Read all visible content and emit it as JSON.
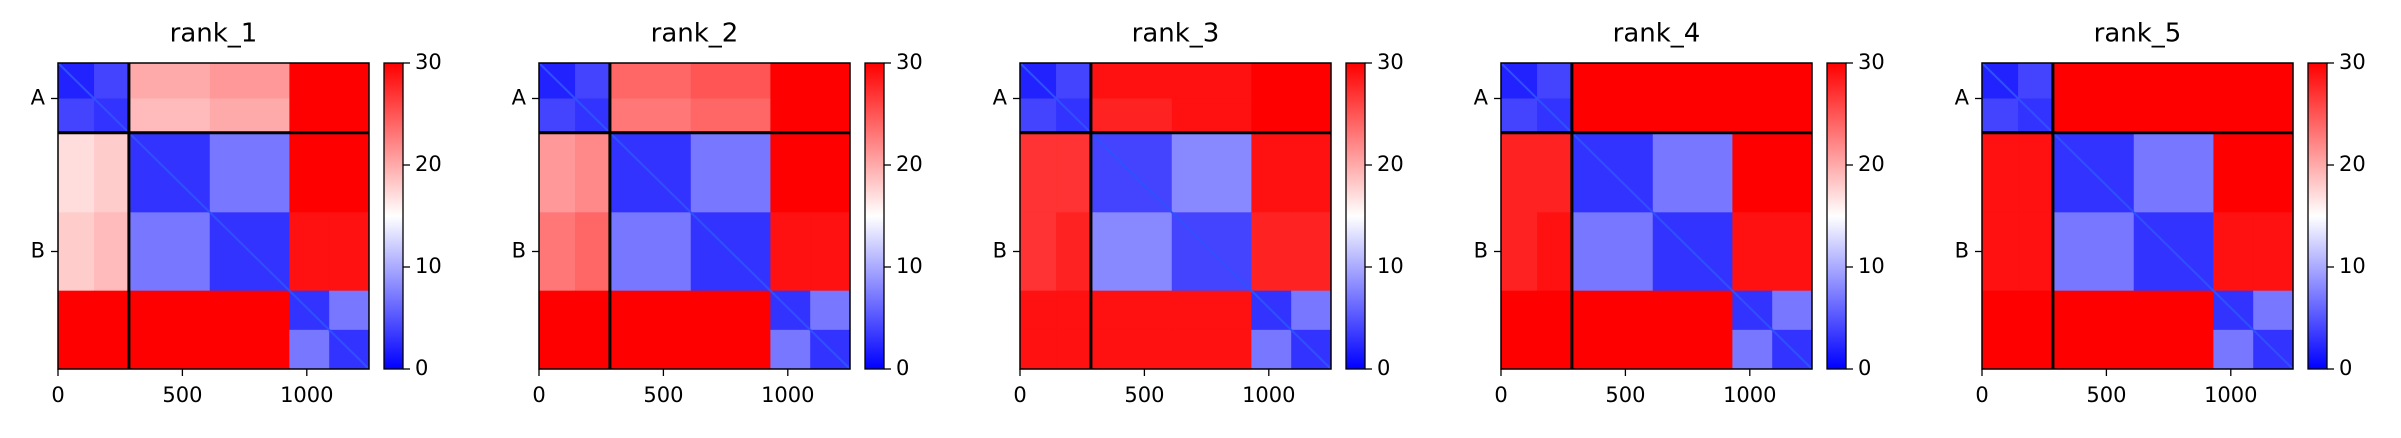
{
  "chart_data": [
    {
      "type": "heatmap",
      "title": "rank_1",
      "x_edges": [
        0,
        145,
        290,
        610,
        930,
        1090,
        1250
      ],
      "xlim": [
        0,
        1250
      ],
      "ylim": [
        1250,
        0
      ],
      "xticks": [
        0,
        500,
        1000
      ],
      "yticks": [
        {
          "value": 145,
          "label": "A"
        },
        {
          "value": 770,
          "label": "B"
        }
      ],
      "chain_breaks": [
        285
      ],
      "colormap": [
        "#0000ff",
        "#ffffff",
        "#ff0000"
      ],
      "clim": [
        0,
        30
      ],
      "cticks": [
        0,
        10,
        20,
        30
      ],
      "values": [
        [
          2,
          4,
          20,
          21,
          30,
          30
        ],
        [
          4,
          3,
          19,
          20,
          30,
          30
        ],
        [
          17,
          18,
          3,
          7,
          30,
          30
        ],
        [
          18,
          19,
          7,
          3,
          29,
          29
        ],
        [
          30,
          30,
          30,
          30,
          3,
          7
        ],
        [
          30,
          30,
          30,
          30,
          7,
          3
        ]
      ]
    },
    {
      "type": "heatmap",
      "title": "rank_2",
      "x_edges": [
        0,
        145,
        290,
        610,
        930,
        1090,
        1250
      ],
      "xlim": [
        0,
        1250
      ],
      "ylim": [
        1250,
        0
      ],
      "xticks": [
        0,
        500,
        1000
      ],
      "yticks": [
        {
          "value": 145,
          "label": "A"
        },
        {
          "value": 770,
          "label": "B"
        }
      ],
      "chain_breaks": [
        285
      ],
      "colormap": [
        "#0000ff",
        "#ffffff",
        "#ff0000"
      ],
      "clim": [
        0,
        30
      ],
      "cticks": [
        0,
        10,
        20,
        30
      ],
      "values": [
        [
          2,
          4,
          24,
          25,
          30,
          30
        ],
        [
          4,
          3,
          23,
          24,
          30,
          30
        ],
        [
          21,
          22,
          3,
          7,
          30,
          30
        ],
        [
          23,
          24,
          7,
          3,
          29,
          29
        ],
        [
          30,
          30,
          30,
          30,
          3,
          7
        ],
        [
          30,
          30,
          30,
          30,
          7,
          3
        ]
      ]
    },
    {
      "type": "heatmap",
      "title": "rank_3",
      "x_edges": [
        0,
        145,
        290,
        610,
        930,
        1090,
        1250
      ],
      "xlim": [
        0,
        1250
      ],
      "ylim": [
        1250,
        0
      ],
      "xticks": [
        0,
        500,
        1000
      ],
      "yticks": [
        {
          "value": 145,
          "label": "A"
        },
        {
          "value": 770,
          "label": "B"
        }
      ],
      "chain_breaks": [
        285
      ],
      "colormap": [
        "#0000ff",
        "#ffffff",
        "#ff0000"
      ],
      "clim": [
        0,
        30
      ],
      "cticks": [
        0,
        10,
        20,
        30
      ],
      "values": [
        [
          2,
          4,
          29,
          29,
          30,
          30
        ],
        [
          4,
          3,
          28,
          29,
          30,
          30
        ],
        [
          27,
          27,
          4,
          8,
          29,
          29
        ],
        [
          27,
          28,
          8,
          4,
          28,
          28
        ],
        [
          29,
          29,
          29,
          29,
          3,
          7
        ],
        [
          29,
          29,
          29,
          29,
          7,
          3
        ]
      ]
    },
    {
      "type": "heatmap",
      "title": "rank_4",
      "x_edges": [
        0,
        145,
        290,
        610,
        930,
        1090,
        1250
      ],
      "xlim": [
        0,
        1250
      ],
      "ylim": [
        1250,
        0
      ],
      "xticks": [
        0,
        500,
        1000
      ],
      "yticks": [
        {
          "value": 145,
          "label": "A"
        },
        {
          "value": 770,
          "label": "B"
        }
      ],
      "chain_breaks": [
        285
      ],
      "colormap": [
        "#0000ff",
        "#ffffff",
        "#ff0000"
      ],
      "clim": [
        0,
        30
      ],
      "cticks": [
        0,
        10,
        20,
        30
      ],
      "values": [
        [
          2,
          4,
          30,
          30,
          30,
          30
        ],
        [
          4,
          3,
          30,
          30,
          30,
          30
        ],
        [
          28,
          28,
          3,
          7,
          30,
          30
        ],
        [
          28,
          29,
          7,
          3,
          29,
          29
        ],
        [
          30,
          30,
          30,
          30,
          3,
          7
        ],
        [
          30,
          30,
          30,
          30,
          7,
          3
        ]
      ]
    },
    {
      "type": "heatmap",
      "title": "rank_5",
      "x_edges": [
        0,
        145,
        290,
        610,
        930,
        1090,
        1250
      ],
      "xlim": [
        0,
        1250
      ],
      "ylim": [
        1250,
        0
      ],
      "xticks": [
        0,
        500,
        1000
      ],
      "yticks": [
        {
          "value": 145,
          "label": "A"
        },
        {
          "value": 770,
          "label": "B"
        }
      ],
      "chain_breaks": [
        285
      ],
      "colormap": [
        "#0000ff",
        "#ffffff",
        "#ff0000"
      ],
      "clim": [
        0,
        30
      ],
      "cticks": [
        0,
        10,
        20,
        30
      ],
      "values": [
        [
          2,
          4,
          30,
          30,
          30,
          30
        ],
        [
          4,
          3,
          30,
          30,
          30,
          30
        ],
        [
          29,
          29,
          3,
          7,
          30,
          30
        ],
        [
          29,
          29,
          7,
          3,
          29,
          29
        ],
        [
          30,
          30,
          30,
          30,
          3,
          7
        ],
        [
          30,
          30,
          30,
          30,
          7,
          3
        ]
      ]
    }
  ]
}
